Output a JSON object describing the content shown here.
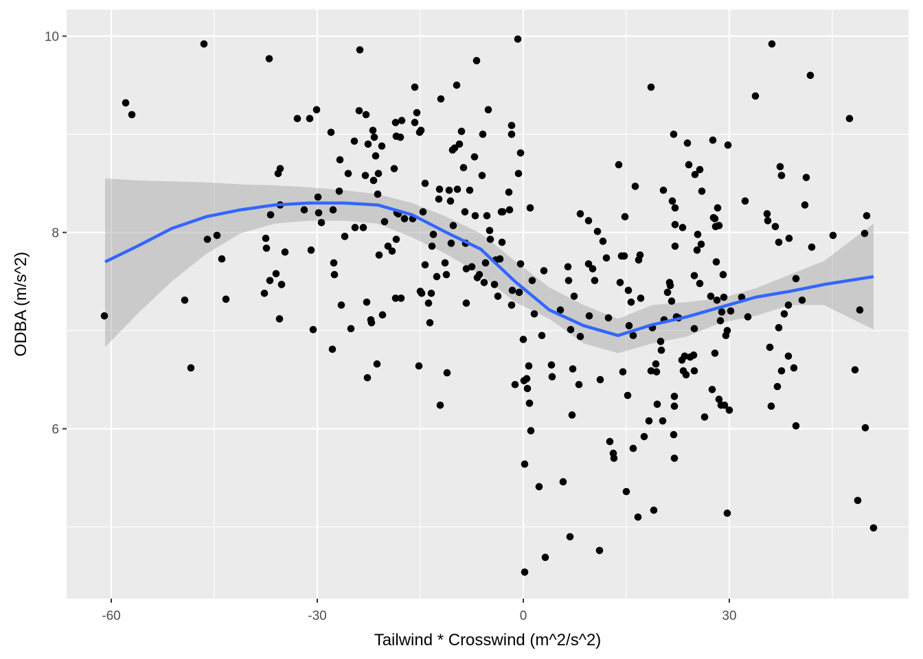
{
  "chart_data": {
    "type": "scatter",
    "x_label": "Tailwind * Crosswind (m^2/s^2)",
    "y_label": "ODBA (m/s^2)",
    "xlim": [
      -66.5,
      56.1
    ],
    "ylim": [
      4.27,
      10.27
    ],
    "xticks": [
      -60,
      -30,
      0,
      30
    ],
    "yticks": [
      6,
      8,
      10
    ],
    "xminor": [
      -45,
      -15,
      15,
      45
    ],
    "yminor": [
      5,
      7,
      9
    ],
    "grid": true,
    "points": {
      "color": "#000000",
      "x": [
        -61.0,
        -57.9,
        -57.0,
        -49.3,
        -48.4,
        -46.5,
        -46.0,
        -44.6,
        -43.9,
        -43.3,
        -37.7,
        -37.5,
        -37.4,
        -37.0,
        -36.9,
        -36.8,
        -36.0,
        -35.7,
        -35.5,
        -35.4,
        -35.4,
        -35.2,
        -34.7,
        -32.9,
        -31.9,
        -31.1,
        -30.9,
        -30.6,
        -30.1,
        -29.9,
        -29.8,
        -29.4,
        -28.0,
        -27.8,
        -27.7,
        -27.6,
        -27.5,
        -26.8,
        -26.7,
        -26.5,
        -26.0,
        -25.5,
        -25.1,
        -24.6,
        -24.5,
        -23.9,
        -23.8,
        -23.3,
        -23.0,
        -22.9,
        -22.8,
        -22.7,
        -22.6,
        -22.2,
        -22.1,
        -21.9,
        -21.8,
        -21.7,
        -21.5,
        -21.3,
        -21.2,
        -21.1,
        -21.0,
        -20.6,
        -20.5,
        -20.2,
        -19.7,
        -19.1,
        -18.8,
        -18.6,
        -18.6,
        -18.5,
        -18.5,
        -18.4,
        -18.2,
        -17.9,
        -17.8,
        -17.7,
        -17.3,
        -16.1,
        -15.8,
        -15.8,
        -15.5,
        -15.2,
        -15.1,
        -15.0,
        -14.9,
        -14.8,
        -14.6,
        -14.3,
        -14.3,
        -13.8,
        -13.6,
        -13.4,
        -13.3,
        -13.1,
        -12.6,
        -12.3,
        -12.2,
        -12.1,
        -12.0,
        -11.4,
        -11.2,
        -11.1,
        -10.8,
        -10.6,
        -10.5,
        -10.3,
        -10.2,
        -10.0,
        -9.7,
        -9.6,
        -9.3,
        -9.0,
        -8.7,
        -8.5,
        -8.4,
        -8.3,
        -8.3,
        -7.8,
        -7.5,
        -7.1,
        -7.0,
        -6.8,
        -6.7,
        -6.4,
        -6.0,
        -5.9,
        -5.7,
        -5.5,
        -5.3,
        -5.1,
        -4.9,
        -4.8,
        -4.2,
        -4.0,
        -3.7,
        -3.4,
        -3.2,
        -3.1,
        -3.0,
        -2.1,
        -2.0,
        -1.7,
        -1.7,
        -1.7,
        -1.6,
        -1.2,
        -0.8,
        -0.7,
        -0.6,
        -0.4,
        -0.4,
        0.0,
        0.1,
        0.2,
        0.2,
        0.5,
        0.6,
        0.8,
        0.9,
        1.0,
        1.1,
        1.3,
        1.6,
        2.3,
        2.7,
        3.0,
        3.2,
        4.1,
        4.2,
        5.4,
        5.8,
        6.5,
        6.6,
        6.8,
        6.9,
        7.1,
        7.2,
        7.4,
        8.1,
        8.3,
        8.3,
        9.5,
        9.5,
        9.6,
        10.1,
        10.4,
        10.8,
        11.1,
        11.2,
        11.6,
        12.1,
        12.4,
        12.6,
        13.1,
        13.2,
        13.9,
        14.1,
        14.3,
        14.5,
        14.7,
        14.8,
        15.0,
        15.2,
        15.3,
        15.4,
        15.7,
        16.0,
        16.0,
        16.3,
        16.7,
        16.8,
        17.0,
        17.1,
        17.6,
        18.3,
        18.6,
        18.6,
        18.8,
        19.0,
        19.3,
        19.4,
        19.5,
        20.0,
        20.1,
        20.3,
        20.4,
        20.5,
        21.0,
        21.3,
        21.4,
        21.6,
        21.7,
        21.9,
        21.9,
        22.0,
        22.0,
        22.0,
        22.1,
        22.1,
        22.1,
        22.3,
        22.6,
        23.1,
        23.2,
        23.3,
        23.5,
        23.7,
        23.9,
        24.1,
        24.3,
        24.8,
        24.9,
        24.9,
        24.9,
        25.0,
        25.3,
        25.4,
        25.7,
        25.7,
        25.9,
        26.0,
        26.4,
        27.3,
        27.5,
        27.6,
        27.7,
        27.9,
        27.9,
        28.0,
        28.1,
        28.2,
        28.3,
        28.5,
        28.5,
        28.7,
        28.8,
        28.9,
        29.1,
        29.2,
        29.3,
        29.5,
        29.7,
        29.7,
        29.8,
        30.0,
        30.2,
        31.8,
        32.3,
        32.7,
        33.8,
        35.5,
        35.6,
        35.9,
        36.1,
        36.2,
        36.7,
        37.0,
        37.2,
        37.2,
        37.4,
        37.6,
        37.6,
        38.0,
        38.6,
        38.6,
        38.7,
        39.4,
        39.7,
        39.7,
        40.6,
        41.0,
        41.2,
        41.8,
        42.0,
        45.1,
        47.5,
        48.3,
        48.7,
        49.0,
        49.7,
        49.8,
        50.0,
        51.0
      ],
      "y": [
        7.15,
        9.32,
        9.2,
        7.31,
        6.62,
        9.92,
        7.93,
        7.97,
        7.73,
        7.32,
        7.38,
        7.94,
        7.84,
        9.77,
        7.51,
        8.18,
        7.58,
        8.6,
        7.12,
        8.65,
        8.28,
        7.47,
        7.8,
        9.16,
        8.23,
        9.16,
        7.82,
        7.01,
        9.25,
        8.36,
        8.2,
        8.1,
        9.02,
        6.81,
        8.23,
        7.69,
        7.57,
        8.42,
        8.74,
        7.26,
        7.96,
        8.6,
        7.02,
        8.93,
        8.05,
        9.24,
        9.86,
        8.05,
        8.58,
        9.2,
        7.29,
        6.52,
        8.9,
        7.11,
        7.08,
        9.04,
        8.53,
        8.97,
        8.78,
        6.66,
        8.39,
        8.6,
        7.77,
        8.88,
        7.16,
        8.11,
        7.86,
        7.81,
        8.65,
        9.12,
        7.33,
        7.93,
        8.98,
        8.2,
        8.19,
        8.97,
        7.33,
        9.14,
        8.14,
        8.14,
        9.48,
        9.12,
        9.22,
        6.64,
        9.02,
        7.4,
        9.04,
        7.38,
        8.21,
        8.5,
        7.67,
        7.28,
        7.08,
        7.38,
        7.86,
        7.98,
        7.55,
        8.34,
        8.44,
        6.24,
        9.36,
        7.69,
        7.57,
        6.57,
        8.43,
        8.32,
        7.89,
        8.84,
        8.07,
        8.86,
        9.5,
        8.44,
        8.9,
        9.03,
        8.66,
        8.21,
        7.89,
        7.28,
        7.63,
        8.43,
        7.65,
        8.77,
        8.17,
        9.75,
        7.54,
        7.57,
        8.58,
        9.0,
        7.49,
        7.69,
        8.17,
        9.25,
        8.02,
        7.93,
        7.47,
        7.72,
        7.35,
        7.73,
        8.21,
        7.9,
        8.21,
        8.41,
        8.23,
        9.09,
        7.26,
        9.0,
        7.41,
        6.45,
        9.97,
        8.6,
        7.39,
        8.81,
        7.68,
        6.91,
        6.49,
        5.64,
        4.54,
        6.51,
        6.41,
        6.64,
        6.26,
        8.25,
        5.98,
        7.51,
        7.17,
        5.41,
        6.95,
        7.61,
        4.69,
        6.65,
        6.53,
        7.21,
        5.46,
        7.65,
        7.51,
        4.9,
        7.01,
        6.14,
        6.61,
        7.35,
        6.45,
        8.19,
        6.94,
        8.12,
        7.68,
        7.15,
        7.63,
        7.51,
        8.01,
        4.76,
        6.5,
        7.91,
        7.74,
        7.13,
        5.87,
        5.75,
        5.7,
        8.69,
        7.49,
        7.76,
        6.58,
        7.76,
        8.16,
        5.36,
        6.34,
        7.41,
        7.05,
        7.29,
        5.8,
        6.95,
        8.47,
        5.1,
        7.72,
        7.77,
        7.33,
        5.92,
        6.08,
        9.48,
        6.59,
        7.03,
        5.17,
        6.66,
        6.58,
        6.25,
        6.89,
        6.8,
        6.08,
        8.43,
        7.11,
        7.39,
        7.49,
        7.46,
        7.3,
        8.32,
        5.94,
        9.0,
        6.23,
        6.33,
        5.7,
        8.25,
        8.08,
        7.86,
        7.14,
        7.13,
        6.7,
        8.05,
        6.59,
        6.74,
        6.55,
        8.91,
        8.69,
        6.73,
        6.75,
        7.56,
        6.59,
        7.02,
        8.59,
        7.82,
        7.98,
        8.64,
        7.48,
        7.88,
        8.42,
        6.12,
        7.35,
        6.4,
        8.94,
        8.15,
        6.77,
        8.14,
        8.06,
        7.7,
        7.31,
        8.25,
        8.07,
        6.3,
        7.1,
        6.24,
        7.19,
        7.57,
        7.34,
        6.24,
        6.95,
        5.14,
        7.0,
        8.89,
        6.19,
        7.2,
        7.34,
        8.32,
        7.14,
        9.39,
        8.19,
        8.12,
        6.83,
        6.23,
        9.92,
        8.06,
        6.43,
        7.9,
        7.03,
        8.67,
        8.58,
        6.59,
        7.17,
        6.74,
        7.26,
        7.94,
        6.62,
        7.53,
        6.03,
        7.31,
        8.28,
        8.56,
        9.6,
        7.85,
        7.97,
        9.16,
        6.6,
        5.27,
        7.21,
        7.99,
        6.01,
        8.17,
        4.99
      ]
    },
    "smooth": {
      "color": "#3366ff",
      "band_color": "#999999",
      "x": [
        -60.9,
        -56.2,
        -51.2,
        -46.2,
        -41.2,
        -36.2,
        -31.2,
        -26.2,
        -21.2,
        -16.2,
        -11.2,
        -6.2,
        -1.2,
        3.8,
        8.8,
        13.8,
        18.8,
        23.8,
        28.8,
        33.8,
        38.8,
        43.8,
        51.0
      ],
      "y": [
        7.7,
        7.86,
        8.04,
        8.16,
        8.23,
        8.28,
        8.3,
        8.3,
        8.28,
        8.18,
        8.0,
        7.83,
        7.5,
        7.21,
        7.05,
        6.95,
        7.06,
        7.14,
        7.24,
        7.34,
        7.4,
        7.47,
        7.55
      ],
      "upper": [
        8.55,
        8.53,
        8.52,
        8.51,
        8.49,
        8.48,
        8.46,
        8.43,
        8.39,
        8.3,
        8.16,
        7.99,
        7.71,
        7.44,
        7.26,
        7.12,
        7.26,
        7.29,
        7.33,
        7.43,
        7.57,
        7.71,
        8.09
      ],
      "lower": [
        6.83,
        7.17,
        7.5,
        7.78,
        7.99,
        8.09,
        8.12,
        8.12,
        8.09,
        7.95,
        7.78,
        7.57,
        7.29,
        7.12,
        6.87,
        6.77,
        6.87,
        6.94,
        7.08,
        7.15,
        7.26,
        7.26,
        7.01
      ]
    }
  }
}
